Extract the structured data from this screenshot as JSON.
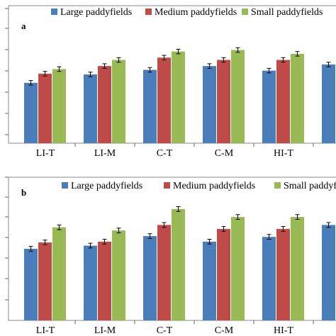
{
  "chart_data": [
    {
      "type": "bar",
      "panel_label": "a",
      "categories": [
        "LI-T",
        "LI-M",
        "C-T",
        "C-M",
        "HI-T",
        ""
      ],
      "series": [
        {
          "name": "Large paddyfields",
          "color": "#4a7ebb",
          "values": [
            0.395,
            0.45,
            0.48,
            0.505,
            0.475,
            0.515
          ],
          "errors": [
            0.015,
            0.015,
            0.015,
            0.015,
            0.015,
            0.015
          ]
        },
        {
          "name": "Medium paddyfields",
          "color": "#be4b48",
          "values": [
            0.455,
            0.505,
            0.56,
            0.545,
            0.545,
            null
          ],
          "errors": [
            0.015,
            0.015,
            0.015,
            0.015,
            0.015,
            null
          ]
        },
        {
          "name": "Small paddyfields",
          "color": "#98b954",
          "values": [
            0.485,
            0.545,
            0.6,
            0.61,
            0.585,
            null
          ],
          "errors": [
            0.015,
            0.015,
            0.015,
            0.015,
            0.015,
            null
          ]
        }
      ],
      "legend": "top",
      "grid": false
    },
    {
      "type": "bar",
      "panel_label": "b",
      "categories": [
        "LI-T",
        "LI-M",
        "C-T",
        "C-M",
        "HI-T",
        ""
      ],
      "series": [
        {
          "name": "Large paddyfields",
          "color": "#4a7ebb",
          "values": [
            0.45,
            0.47,
            0.53,
            0.495,
            0.525,
            0.6
          ],
          "errors": [
            0.015,
            0.015,
            0.015,
            0.015,
            0.015,
            0.015
          ]
        },
        {
          "name": "Medium paddyfields",
          "color": "#be4b48",
          "values": [
            0.49,
            0.495,
            0.6,
            0.575,
            0.575,
            null
          ],
          "errors": [
            0.015,
            0.015,
            0.015,
            0.015,
            0.015,
            null
          ]
        },
        {
          "name": "Small paddyfields",
          "color": "#98b954",
          "values": [
            0.585,
            0.565,
            0.7,
            0.65,
            0.65,
            null
          ],
          "errors": [
            0.015,
            0.015,
            0.015,
            0.015,
            0.015,
            null
          ]
        }
      ],
      "legend": "top",
      "grid": false
    }
  ]
}
